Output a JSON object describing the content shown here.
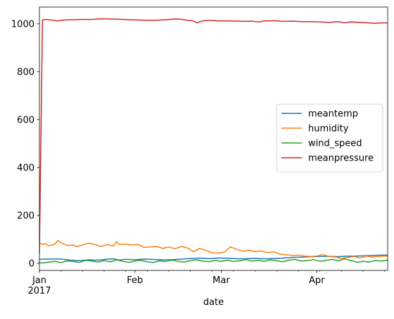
{
  "chart_data": {
    "type": "line",
    "xlabel": "date",
    "ylabel": "",
    "title": "",
    "x_range": [
      "2017-01-01",
      "2017-04-24"
    ],
    "ylim": [
      -30,
      1070
    ],
    "y_ticks": [
      0,
      200,
      400,
      600,
      800,
      1000
    ],
    "x_ticks": [
      {
        "date": "2017-01-01",
        "label": "Jan",
        "sublabel": "2017"
      },
      {
        "date": "2017-02-01",
        "label": "Feb",
        "sublabel": ""
      },
      {
        "date": "2017-03-01",
        "label": "Mar",
        "sublabel": ""
      },
      {
        "date": "2017-04-01",
        "label": "Apr",
        "sublabel": ""
      }
    ],
    "legend_position": "center-right",
    "grid": false,
    "series": [
      {
        "name": "meantemp",
        "color": "#1f77b4",
        "points": [
          [
            "2017-01-01",
            15.9
          ],
          [
            "2017-01-03",
            17.5
          ],
          [
            "2017-01-05",
            17.3
          ],
          [
            "2017-01-07",
            18.0
          ],
          [
            "2017-01-09",
            16.0
          ],
          [
            "2017-01-11",
            12.8
          ],
          [
            "2017-01-13",
            11.5
          ],
          [
            "2017-01-15",
            12.0
          ],
          [
            "2017-01-17",
            14.5
          ],
          [
            "2017-01-19",
            12.5
          ],
          [
            "2017-01-21",
            14.0
          ],
          [
            "2017-01-23",
            17.0
          ],
          [
            "2017-01-25",
            18.5
          ],
          [
            "2017-01-27",
            13.0
          ],
          [
            "2017-01-29",
            16.5
          ],
          [
            "2017-02-01",
            15.0
          ],
          [
            "2017-02-04",
            17.5
          ],
          [
            "2017-02-07",
            15.5
          ],
          [
            "2017-02-10",
            14.0
          ],
          [
            "2017-02-13",
            15.0
          ],
          [
            "2017-02-16",
            17.0
          ],
          [
            "2017-02-19",
            19.5
          ],
          [
            "2017-02-22",
            21.5
          ],
          [
            "2017-02-25",
            19.0
          ],
          [
            "2017-02-28",
            22.0
          ],
          [
            "2017-03-03",
            21.0
          ],
          [
            "2017-03-06",
            18.5
          ],
          [
            "2017-03-09",
            19.0
          ],
          [
            "2017-03-12",
            20.5
          ],
          [
            "2017-03-15",
            18.0
          ],
          [
            "2017-03-18",
            19.5
          ],
          [
            "2017-03-21",
            21.5
          ],
          [
            "2017-03-24",
            24.0
          ],
          [
            "2017-03-27",
            25.5
          ],
          [
            "2017-03-30",
            27.0
          ],
          [
            "2017-04-02",
            28.5
          ],
          [
            "2017-04-05",
            29.0
          ],
          [
            "2017-04-08",
            27.5
          ],
          [
            "2017-04-11",
            29.5
          ],
          [
            "2017-04-14",
            30.0
          ],
          [
            "2017-04-17",
            31.5
          ],
          [
            "2017-04-20",
            33.0
          ],
          [
            "2017-04-22",
            34.0
          ],
          [
            "2017-04-24",
            33.5
          ]
        ]
      },
      {
        "name": "humidity",
        "color": "#ff7f0e",
        "points": [
          [
            "2017-01-01",
            85
          ],
          [
            "2017-01-02",
            78
          ],
          [
            "2017-01-03",
            82
          ],
          [
            "2017-01-04",
            72
          ],
          [
            "2017-01-06",
            80
          ],
          [
            "2017-01-07",
            95
          ],
          [
            "2017-01-08",
            86
          ],
          [
            "2017-01-10",
            74
          ],
          [
            "2017-01-12",
            76
          ],
          [
            "2017-01-13",
            70
          ],
          [
            "2017-01-15",
            76
          ],
          [
            "2017-01-17",
            84
          ],
          [
            "2017-01-19",
            78
          ],
          [
            "2017-01-21",
            70
          ],
          [
            "2017-01-23",
            78
          ],
          [
            "2017-01-25",
            72
          ],
          [
            "2017-01-26",
            90
          ],
          [
            "2017-01-27",
            78
          ],
          [
            "2017-01-29",
            80
          ],
          [
            "2017-01-31",
            76
          ],
          [
            "2017-02-02",
            78
          ],
          [
            "2017-02-04",
            66
          ],
          [
            "2017-02-06",
            68
          ],
          [
            "2017-02-08",
            70
          ],
          [
            "2017-02-10",
            62
          ],
          [
            "2017-02-12",
            68
          ],
          [
            "2017-02-14",
            60
          ],
          [
            "2017-02-16",
            70
          ],
          [
            "2017-02-18",
            64
          ],
          [
            "2017-02-20",
            48
          ],
          [
            "2017-02-22",
            62
          ],
          [
            "2017-02-24",
            54
          ],
          [
            "2017-02-26",
            44
          ],
          [
            "2017-02-28",
            42
          ],
          [
            "2017-03-02",
            46
          ],
          [
            "2017-03-04",
            68
          ],
          [
            "2017-03-06",
            58
          ],
          [
            "2017-03-08",
            50
          ],
          [
            "2017-03-10",
            55
          ],
          [
            "2017-03-12",
            48
          ],
          [
            "2017-03-14",
            52
          ],
          [
            "2017-03-16",
            44
          ],
          [
            "2017-03-18",
            48
          ],
          [
            "2017-03-20",
            38
          ],
          [
            "2017-03-22",
            36
          ],
          [
            "2017-03-24",
            32
          ],
          [
            "2017-03-26",
            34
          ],
          [
            "2017-03-28",
            30
          ],
          [
            "2017-03-30",
            28
          ],
          [
            "2017-04-01",
            30
          ],
          [
            "2017-04-03",
            36
          ],
          [
            "2017-04-05",
            28
          ],
          [
            "2017-04-07",
            26
          ],
          [
            "2017-04-09",
            20
          ],
          [
            "2017-04-11",
            24
          ],
          [
            "2017-04-13",
            28
          ],
          [
            "2017-04-15",
            22
          ],
          [
            "2017-04-17",
            30
          ],
          [
            "2017-04-19",
            26
          ],
          [
            "2017-04-21",
            28
          ],
          [
            "2017-04-23",
            30
          ],
          [
            "2017-04-24",
            30
          ]
        ]
      },
      {
        "name": "wind_speed",
        "color": "#2ca02c",
        "points": [
          [
            "2017-01-01",
            2.7
          ],
          [
            "2017-01-02",
            1.0
          ],
          [
            "2017-01-04",
            4.5
          ],
          [
            "2017-01-06",
            8.0
          ],
          [
            "2017-01-08",
            2.5
          ],
          [
            "2017-01-10",
            10.0
          ],
          [
            "2017-01-12",
            7.0
          ],
          [
            "2017-01-14",
            3.5
          ],
          [
            "2017-01-16",
            12.0
          ],
          [
            "2017-01-18",
            9.0
          ],
          [
            "2017-01-20",
            5.0
          ],
          [
            "2017-01-22",
            11.0
          ],
          [
            "2017-01-24",
            6.0
          ],
          [
            "2017-01-26",
            14.0
          ],
          [
            "2017-01-28",
            8.0
          ],
          [
            "2017-01-30",
            4.0
          ],
          [
            "2017-02-01",
            9.0
          ],
          [
            "2017-02-03",
            12.0
          ],
          [
            "2017-02-05",
            6.0
          ],
          [
            "2017-02-07",
            3.0
          ],
          [
            "2017-02-09",
            10.0
          ],
          [
            "2017-02-11",
            7.0
          ],
          [
            "2017-02-13",
            13.0
          ],
          [
            "2017-02-15",
            8.0
          ],
          [
            "2017-02-17",
            5.0
          ],
          [
            "2017-02-19",
            11.0
          ],
          [
            "2017-02-21",
            14.0
          ],
          [
            "2017-02-23",
            9.0
          ],
          [
            "2017-02-25",
            6.0
          ],
          [
            "2017-02-27",
            12.0
          ],
          [
            "2017-03-01",
            8.0
          ],
          [
            "2017-03-03",
            13.0
          ],
          [
            "2017-03-05",
            7.0
          ],
          [
            "2017-03-07",
            10.0
          ],
          [
            "2017-03-09",
            15.0
          ],
          [
            "2017-03-11",
            9.0
          ],
          [
            "2017-03-13",
            12.0
          ],
          [
            "2017-03-15",
            8.0
          ],
          [
            "2017-03-17",
            14.0
          ],
          [
            "2017-03-19",
            10.0
          ],
          [
            "2017-03-21",
            6.0
          ],
          [
            "2017-03-23",
            13.0
          ],
          [
            "2017-03-25",
            16.0
          ],
          [
            "2017-03-27",
            9.0
          ],
          [
            "2017-03-29",
            11.0
          ],
          [
            "2017-03-31",
            15.0
          ],
          [
            "2017-04-02",
            8.0
          ],
          [
            "2017-04-04",
            12.0
          ],
          [
            "2017-04-06",
            16.0
          ],
          [
            "2017-04-08",
            10.0
          ],
          [
            "2017-04-10",
            18.0
          ],
          [
            "2017-04-12",
            12.0
          ],
          [
            "2017-04-14",
            4.0
          ],
          [
            "2017-04-16",
            8.0
          ],
          [
            "2017-04-18",
            5.0
          ],
          [
            "2017-04-20",
            11.0
          ],
          [
            "2017-04-22",
            9.0
          ],
          [
            "2017-04-24",
            13.0
          ]
        ]
      },
      {
        "name": "meanpressure",
        "color": "#d62728",
        "points": [
          [
            "2017-01-01",
            40
          ],
          [
            "2017-01-02",
            1016
          ],
          [
            "2017-01-03",
            1018
          ],
          [
            "2017-01-05",
            1016
          ],
          [
            "2017-01-07",
            1012
          ],
          [
            "2017-01-09",
            1016
          ],
          [
            "2017-01-12",
            1017
          ],
          [
            "2017-01-15",
            1018
          ],
          [
            "2017-01-18",
            1018
          ],
          [
            "2017-01-21",
            1021
          ],
          [
            "2017-01-24",
            1020
          ],
          [
            "2017-01-27",
            1019
          ],
          [
            "2017-01-30",
            1017
          ],
          [
            "2017-02-02",
            1016
          ],
          [
            "2017-02-05",
            1015
          ],
          [
            "2017-02-08",
            1015
          ],
          [
            "2017-02-11",
            1017
          ],
          [
            "2017-02-14",
            1020
          ],
          [
            "2017-02-16",
            1019
          ],
          [
            "2017-02-18",
            1015
          ],
          [
            "2017-02-20",
            1012
          ],
          [
            "2017-02-21",
            1004
          ],
          [
            "2017-02-23",
            1012
          ],
          [
            "2017-02-25",
            1015
          ],
          [
            "2017-02-28",
            1012
          ],
          [
            "2017-03-03",
            1012
          ],
          [
            "2017-03-06",
            1011
          ],
          [
            "2017-03-09",
            1010
          ],
          [
            "2017-03-11",
            1011
          ],
          [
            "2017-03-13",
            1008
          ],
          [
            "2017-03-15",
            1012
          ],
          [
            "2017-03-18",
            1013
          ],
          [
            "2017-03-21",
            1010
          ],
          [
            "2017-03-24",
            1011
          ],
          [
            "2017-03-27",
            1009
          ],
          [
            "2017-03-30",
            1009
          ],
          [
            "2017-04-02",
            1008
          ],
          [
            "2017-04-05",
            1006
          ],
          [
            "2017-04-08",
            1009
          ],
          [
            "2017-04-10",
            1004
          ],
          [
            "2017-04-12",
            1008
          ],
          [
            "2017-04-15",
            1006
          ],
          [
            "2017-04-18",
            1004
          ],
          [
            "2017-04-20",
            1002
          ],
          [
            "2017-04-22",
            1004
          ],
          [
            "2017-04-24",
            1004
          ]
        ]
      }
    ]
  }
}
